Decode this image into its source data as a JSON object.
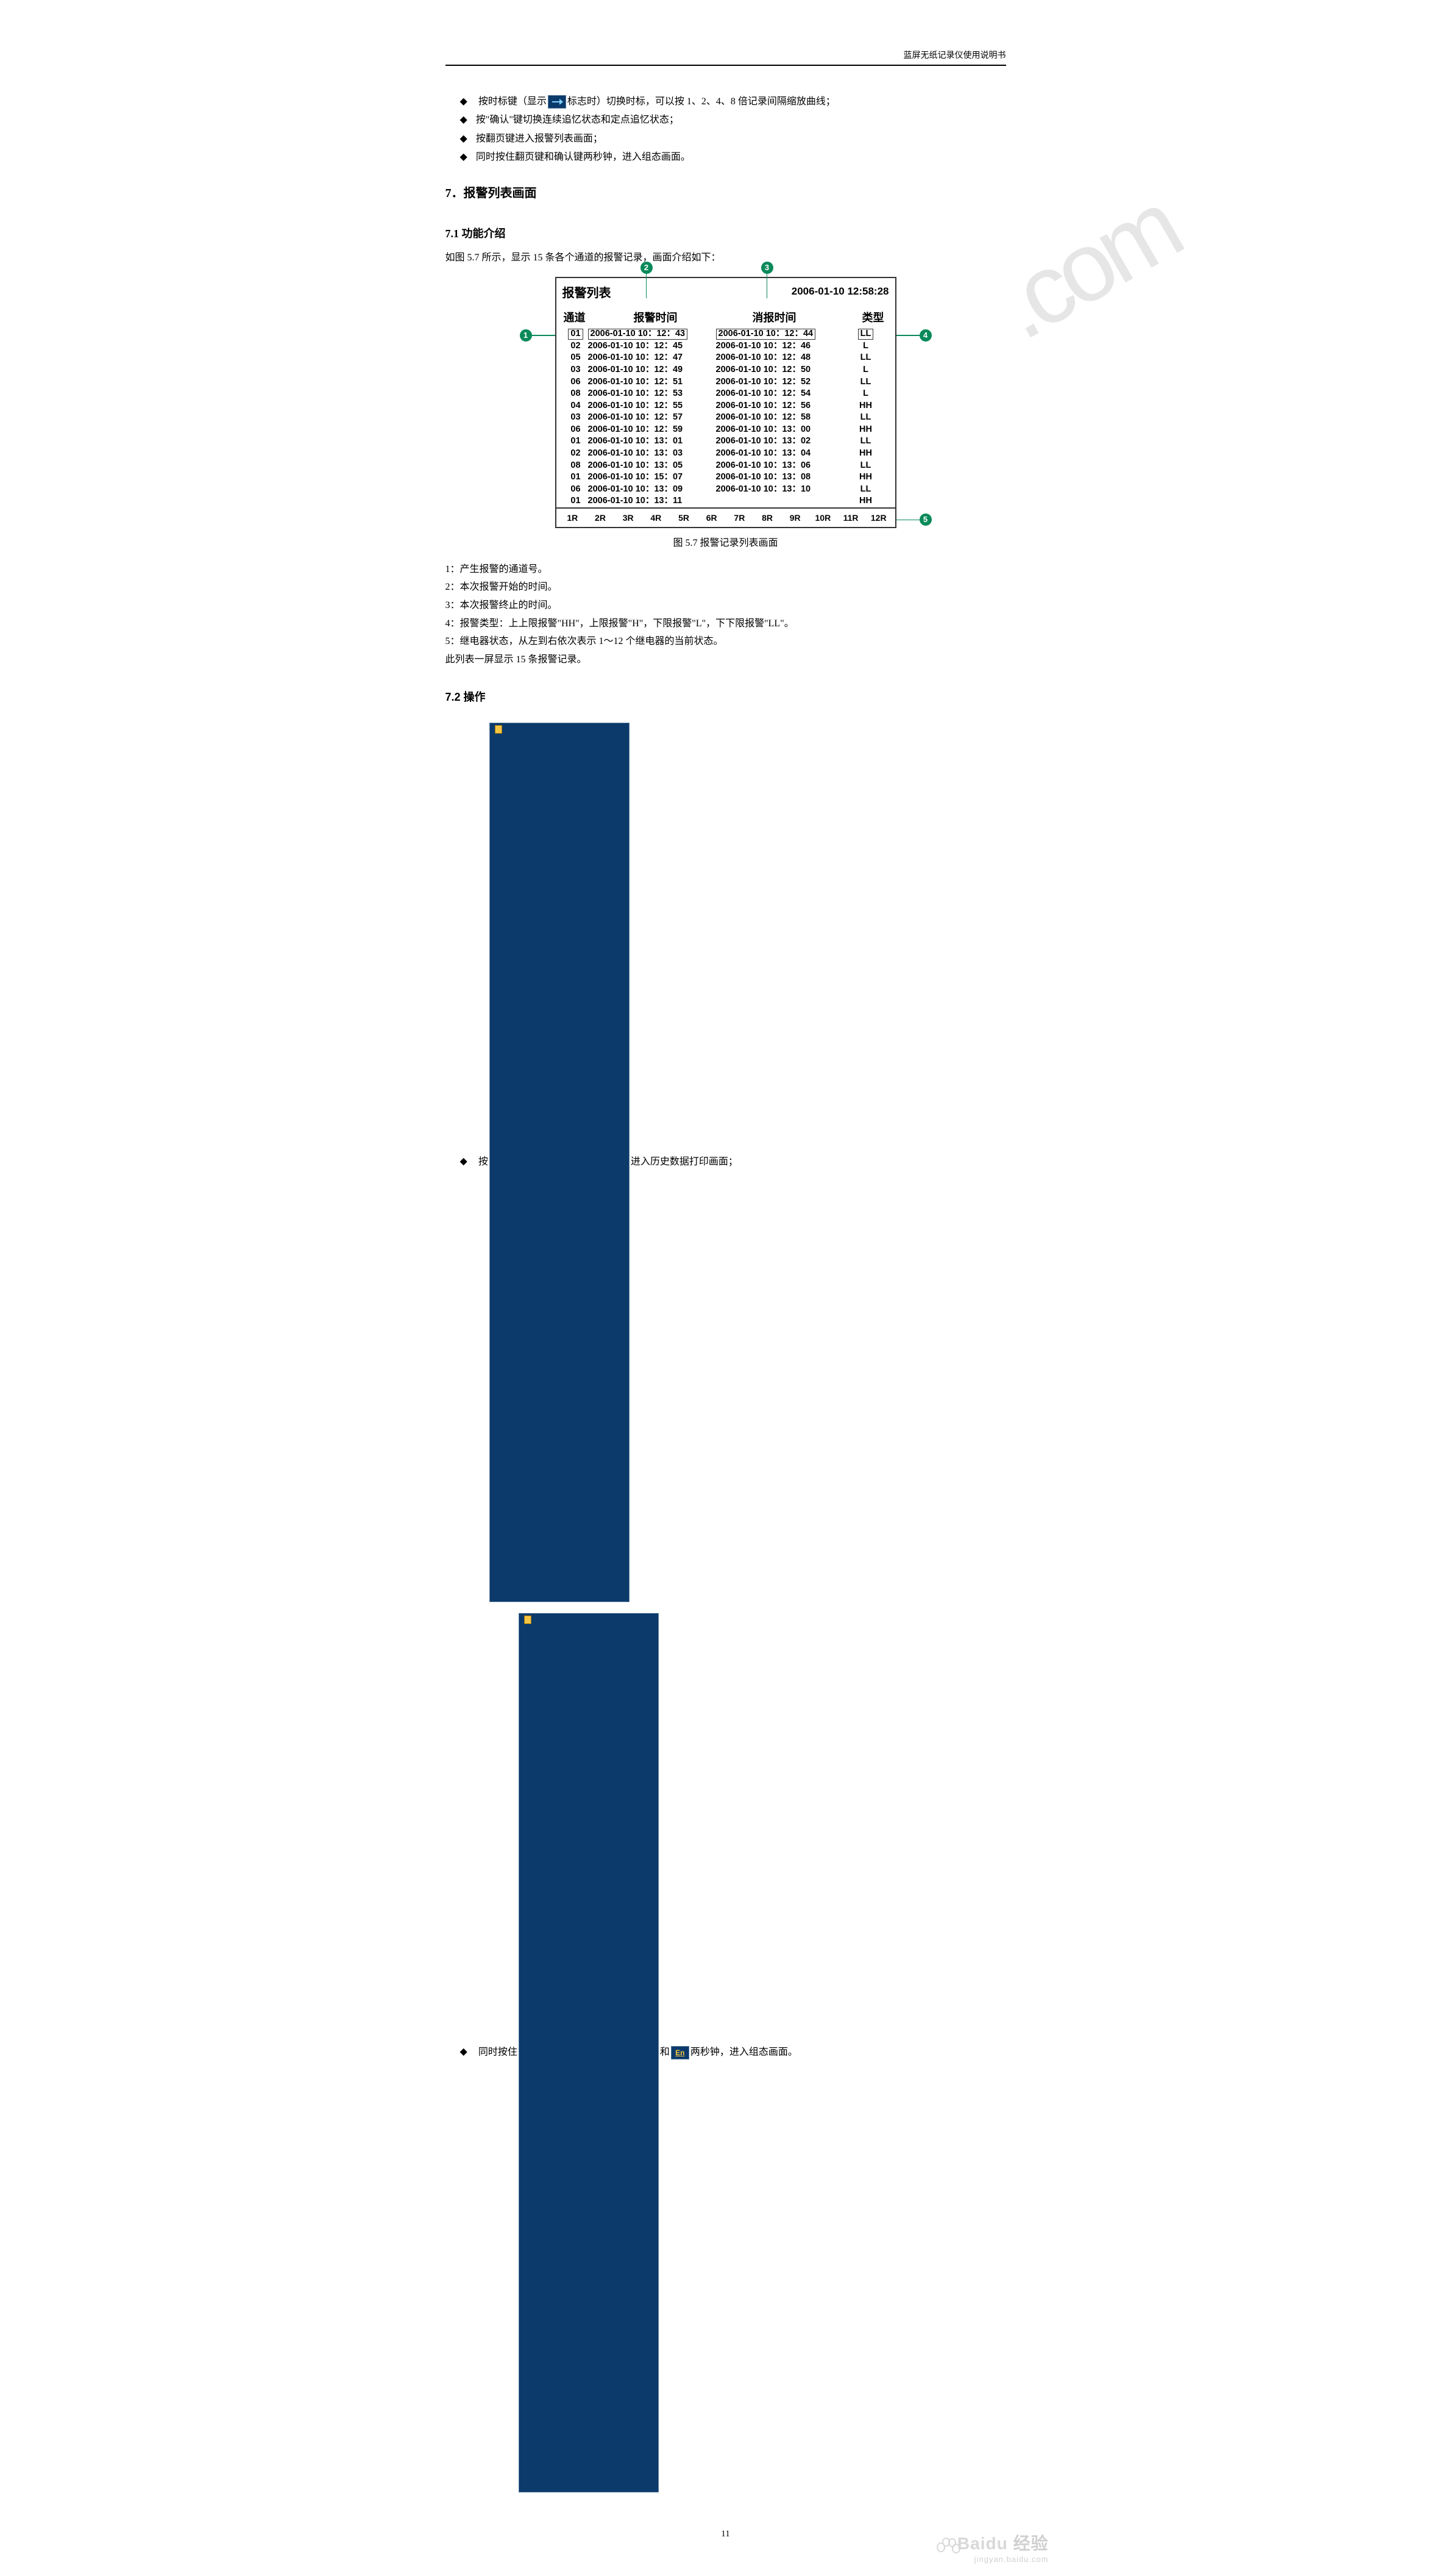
{
  "header": {
    "title": "蓝屏无纸记录仪使用说明书"
  },
  "top_bullets": [
    {
      "pre": "按时标键（显示",
      "icon": "arrow",
      "post": "标志时）切换时标，可以按 1、2、4、8 倍记录间隔缩放曲线；"
    },
    {
      "text": "按\"确认\"键切换连续追忆状态和定点追忆状态；"
    },
    {
      "text": "按翻页键进入报警列表画面；"
    },
    {
      "text": "同时按住翻页键和确认键两秒钟，进入组态画面。"
    }
  ],
  "section7": {
    "title": "7．报警列表画面"
  },
  "section71": {
    "title": "7.1 功能介绍",
    "intro": "如图 5.7 所示，显示 15 条各个通道的报警记录，画面介绍如下："
  },
  "figure": {
    "title_left": "报警列表",
    "title_right": "2006-01-10 12:58:28",
    "headers": {
      "ch": "通道",
      "alarm_time": "报警时间",
      "clear_time": "消报时间",
      "type": "类型"
    },
    "rows": [
      {
        "ch": "01",
        "at": "2006-01-10 10：12：43",
        "ct": "2006-01-10 10：12：44",
        "ty": "LL",
        "sel": true
      },
      {
        "ch": "02",
        "at": "2006-01-10 10：12：45",
        "ct": "2006-01-10 10：12：46",
        "ty": "L"
      },
      {
        "ch": "05",
        "at": "2006-01-10 10：12：47",
        "ct": "2006-01-10 10：12：48",
        "ty": "LL"
      },
      {
        "ch": "03",
        "at": "2006-01-10 10：12：49",
        "ct": "2006-01-10 10：12：50",
        "ty": "L"
      },
      {
        "ch": "06",
        "at": "2006-01-10 10：12：51",
        "ct": "2006-01-10 10：12：52",
        "ty": "LL"
      },
      {
        "ch": "08",
        "at": "2006-01-10 10：12：53",
        "ct": "2006-01-10 10：12：54",
        "ty": "L"
      },
      {
        "ch": "04",
        "at": "2006-01-10 10：12：55",
        "ct": "2006-01-10 10：12：56",
        "ty": "HH"
      },
      {
        "ch": "03",
        "at": "2006-01-10 10：12：57",
        "ct": "2006-01-10 10：12：58",
        "ty": "LL"
      },
      {
        "ch": "06",
        "at": "2006-01-10 10：12：59",
        "ct": "2006-01-10 10：13：00",
        "ty": "HH"
      },
      {
        "ch": "01",
        "at": "2006-01-10 10：13：01",
        "ct": "2006-01-10 10：13：02",
        "ty": "LL"
      },
      {
        "ch": "02",
        "at": "2006-01-10 10：13：03",
        "ct": "2006-01-10 10：13：04",
        "ty": "HH"
      },
      {
        "ch": "08",
        "at": "2006-01-10 10：13：05",
        "ct": "2006-01-10 10：13：06",
        "ty": "LL"
      },
      {
        "ch": "01",
        "at": "2006-01-10 10：15：07",
        "ct": "2006-01-10 10：13：08",
        "ty": "HH"
      },
      {
        "ch": "06",
        "at": "2006-01-10 10：13：09",
        "ct": "2006-01-10 10：13：10",
        "ty": "LL"
      },
      {
        "ch": "01",
        "at": "2006-01-10 10：13：11",
        "ct": "",
        "ty": "HH"
      }
    ],
    "relays": [
      "1R",
      "2R",
      "3R",
      "4R",
      "5R",
      "6R",
      "7R",
      "8R",
      "9R",
      "10R",
      "11R",
      "12R"
    ],
    "caption": "图 5.7 报警记录列表画面",
    "callouts": {
      "c1": "1",
      "c2": "2",
      "c3": "3",
      "c4": "4",
      "c5": "5"
    }
  },
  "descriptions": [
    "1：产生报警的通道号。",
    "2：本次报警开始的时间。",
    "3：本次报警终止的时间。",
    "4：报警类型：上上限报警\"HH\"，上限报警\"H\"，下限报警\"L\"，下下限报警\"LL\"。",
    "5：继电器状态，从左到右依次表示 1～12 个继电器的当前状态。",
    "此列表一屏显示 15 条报警记录。"
  ],
  "section72": {
    "title": "7.2 操作",
    "items": [
      {
        "pre": "按",
        "icon1": "page",
        "mid": "进入历史数据打印画面；"
      },
      {
        "pre": "同时按住",
        "icon1": "page",
        "mid": "和",
        "icon2": "en",
        "icon2_text": "En",
        "post": "两秒钟，进入组态画面。"
      }
    ]
  },
  "page_number": "11",
  "baidu": {
    "main": "Baidu 经验",
    "sub": "jingyan.baidu.com"
  }
}
